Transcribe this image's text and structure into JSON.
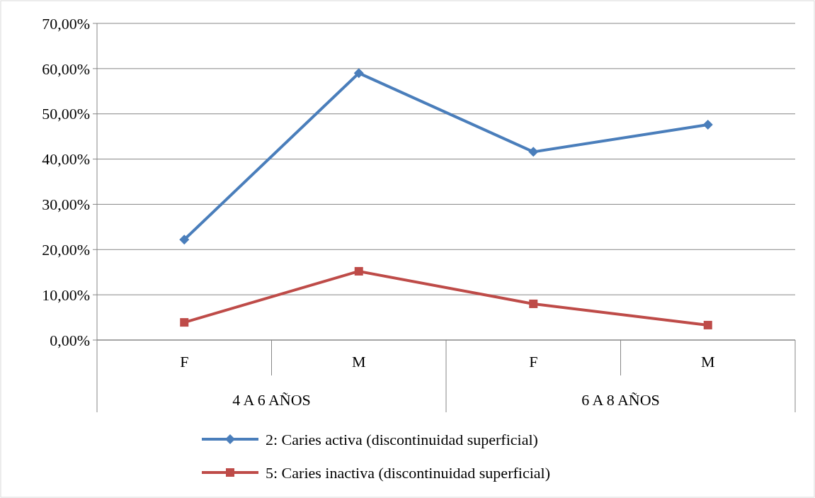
{
  "chart_data": {
    "type": "line",
    "categories": [
      "F",
      "M",
      "F",
      "M"
    ],
    "series": [
      {
        "name": "2: Caries activa (discontinuidad superficial)",
        "color": "#4a7ebb",
        "marker": "diamond",
        "values": [
          22.2,
          59.0,
          41.6,
          47.6
        ]
      },
      {
        "name": "5: Caries inactiva (discontinuidad superficial)",
        "color": "#be4b48",
        "marker": "square",
        "values": [
          3.9,
          15.2,
          8.0,
          3.3
        ]
      }
    ],
    "annotations": [
      "4 A 6 AÑOS",
      "6 A 8 AÑOS"
    ],
    "ylim": [
      0,
      70
    ],
    "yticks": [
      {
        "value": 0,
        "label": "0,00%"
      },
      {
        "value": 10,
        "label": "10,00%"
      },
      {
        "value": 20,
        "label": "20,00%"
      },
      {
        "value": 30,
        "label": "30,00%"
      },
      {
        "value": 40,
        "label": "40,00%"
      },
      {
        "value": 50,
        "label": "50,00%"
      },
      {
        "value": 60,
        "label": "60,00%"
      },
      {
        "value": 70,
        "label": "70,00%"
      }
    ],
    "grid": "y",
    "legend": "bottom",
    "line_style": "solid"
  }
}
